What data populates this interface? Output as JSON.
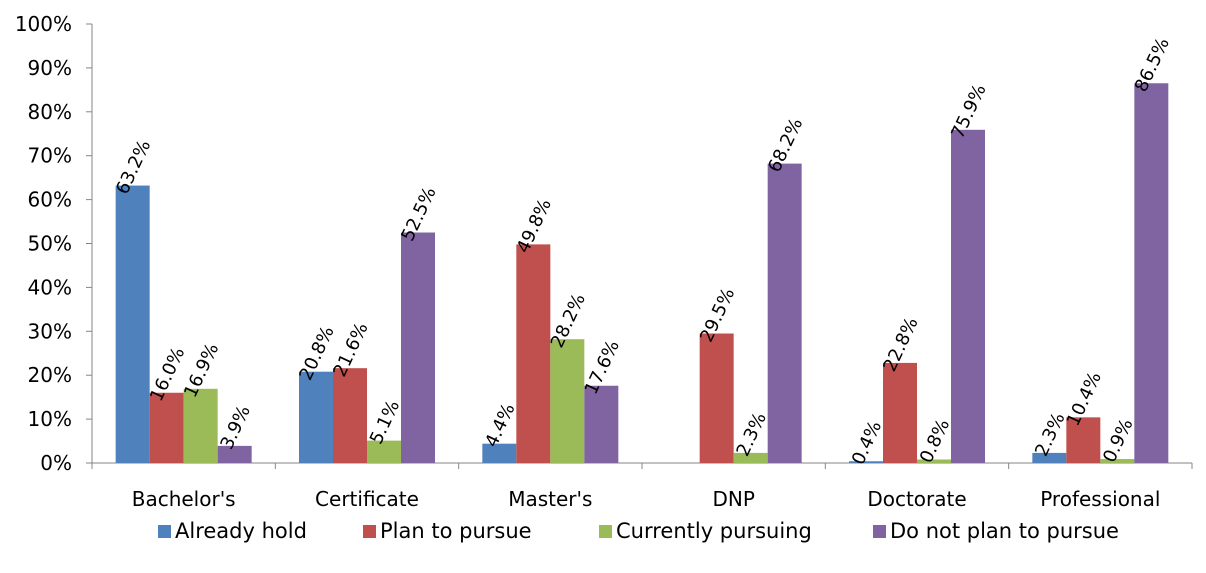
{
  "chart_data": {
    "type": "bar",
    "title": "",
    "xlabel": "",
    "ylabel": "",
    "categories": [
      "Bachelor's",
      "Certificate",
      "Master's",
      "DNP",
      "Doctorate",
      "Professional"
    ],
    "series": [
      {
        "name": "Already hold",
        "color": "#4F81BD",
        "values": [
          63.2,
          20.8,
          4.4,
          null,
          0.4,
          2.3
        ],
        "labels": [
          "63.2%",
          "20.8%",
          "4.4%",
          null,
          "0.4%",
          "2.3%"
        ]
      },
      {
        "name": "Plan to pursue",
        "color": "#C0504D",
        "values": [
          16.0,
          21.6,
          49.8,
          29.5,
          22.8,
          10.4
        ],
        "labels": [
          "16.0%",
          "21.6%",
          "49.8%",
          "29.5%",
          "22.8%",
          "10.4%"
        ]
      },
      {
        "name": "Currently pursuing",
        "color": "#9BBB59",
        "values": [
          16.9,
          5.1,
          28.2,
          2.3,
          0.8,
          0.9
        ],
        "labels": [
          "16.9%",
          "5.1%",
          "28.2%",
          "2.3%",
          "0.8%",
          "0.9%"
        ]
      },
      {
        "name": "Do not plan to pursue",
        "color": "#8064A2",
        "values": [
          3.9,
          52.5,
          17.6,
          68.2,
          75.9,
          86.5
        ],
        "labels": [
          "3.9%",
          "52.5%",
          "17.6%",
          "68.2%",
          "75.9%",
          "86.5%"
        ]
      }
    ],
    "ylim": [
      0,
      100
    ],
    "yticks": [
      "0%",
      "10%",
      "20%",
      "30%",
      "40%",
      "50%",
      "60%",
      "70%",
      "80%",
      "90%",
      "100%"
    ],
    "grid": false,
    "legend_position": "bottom"
  }
}
